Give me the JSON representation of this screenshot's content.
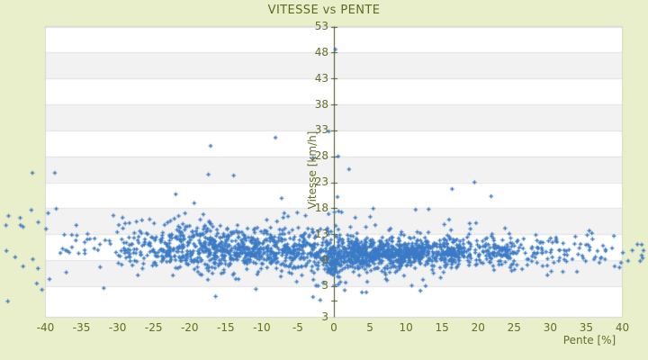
{
  "chart_data": {
    "type": "scatter",
    "title": "VITESSE vs PENTE",
    "xlabel": "Pente [%]",
    "ylabel": "Vitesse [km/h]",
    "x_ticks": [
      -40,
      -35,
      -30,
      -25,
      -20,
      -15,
      -10,
      -5,
      0,
      5,
      10,
      15,
      20,
      25,
      30,
      35,
      40
    ],
    "y_ticks": [
      53,
      48,
      43,
      38,
      33,
      28,
      23,
      18,
      13,
      8,
      3
    ],
    "y_axis_bottom_label": "3",
    "xlim": [
      -40,
      40
    ],
    "ylim": [
      -3,
      53
    ],
    "legend": "none",
    "grid": "horizontal-bands",
    "marker": "plus",
    "colors": {
      "background": "#e9eecb",
      "plot_background": "#ffffff",
      "band": "#f2f2f2",
      "gridline": "#e2e2e2",
      "plot_border": "#d6d6d6",
      "axis_line": "#46511b",
      "text": "#646f25",
      "title_text": "#5d6a1e",
      "marker": "#3c7bc6"
    },
    "scatter": {
      "seed": 42,
      "clusters": [
        {
          "n": 14,
          "x": [
            -45.5,
            -38.0
          ],
          "mean": 11.5,
          "sd": 5.0
        },
        {
          "n": 30,
          "x": [
            -38.0,
            -30.0
          ],
          "mean": 10.8,
          "sd": 2.8
        },
        {
          "n": 85,
          "x": [
            -30.0,
            -24.0
          ],
          "mean": 10.6,
          "sd": 2.4
        },
        {
          "n": 165,
          "x": [
            -24.0,
            -18.0
          ],
          "mean": 10.4,
          "sd": 2.2
        },
        {
          "n": 225,
          "x": [
            -18.0,
            -12.0
          ],
          "mean": 10.2,
          "sd": 2.0
        },
        {
          "n": 210,
          "x": [
            -12.0,
            -6.0
          ],
          "mean": 10.0,
          "sd": 1.9
        },
        {
          "n": 150,
          "x": [
            -6.0,
            -1.0
          ],
          "mean": 9.6,
          "sd": 2.0
        },
        {
          "n": 130,
          "x": [
            -1.0,
            1.0
          ],
          "mean": 8.6,
          "sd": 2.6
        },
        {
          "n": 270,
          "x": [
            1.0,
            6.0
          ],
          "mean": 9.2,
          "sd": 1.5
        },
        {
          "n": 300,
          "x": [
            6.0,
            12.0
          ],
          "mean": 9.3,
          "sd": 1.4
        },
        {
          "n": 210,
          "x": [
            12.0,
            18.0
          ],
          "mean": 9.5,
          "sd": 1.5
        },
        {
          "n": 130,
          "x": [
            18.0,
            25.0
          ],
          "mean": 9.6,
          "sd": 1.6
        },
        {
          "n": 65,
          "x": [
            25.0,
            32.0
          ],
          "mean": 9.8,
          "sd": 1.7
        },
        {
          "n": 32,
          "x": [
            32.0,
            38.0
          ],
          "mean": 9.9,
          "sd": 1.8
        },
        {
          "n": 16,
          "x": [
            38.0,
            44.5
          ],
          "mean": 9.8,
          "sd": 1.9
        },
        {
          "n": 70,
          "x": [
            -26.0,
            20.0
          ],
          "mean": 14.8,
          "sd": 2.3
        },
        {
          "n": 26,
          "x": [
            -20.0,
            15.0
          ],
          "mean": 4.6,
          "sd": 1.4
        }
      ],
      "outliers": [
        [
          0.2,
          48.6
        ],
        [
          -0.7,
          32.8
        ],
        [
          -8.1,
          31.6
        ],
        [
          -17.1,
          30.0
        ],
        [
          0.6,
          28.0
        ],
        [
          -2.9,
          27.7
        ],
        [
          2.1,
          25.5
        ],
        [
          -41.8,
          24.8
        ],
        [
          -38.7,
          24.8
        ],
        [
          -17.4,
          24.5
        ],
        [
          -13.9,
          24.3
        ],
        [
          -38.5,
          17.9
        ],
        [
          -43.1,
          14.4
        ],
        [
          -45.4,
          9.8
        ],
        [
          -43.1,
          6.8
        ],
        [
          -41.2,
          3.5
        ],
        [
          16.4,
          21.7
        ],
        [
          19.5,
          23.0
        ],
        [
          21.8,
          20.3
        ],
        [
          3.9,
          1.8
        ],
        [
          4.5,
          1.8
        ],
        [
          -2.9,
          0.9
        ],
        [
          -1.9,
          0.3
        ],
        [
          1.5,
          2.2
        ],
        [
          -16.4,
          1.0
        ],
        [
          -10.8,
          2.4
        ],
        [
          12.0,
          2.1
        ],
        [
          -31.9,
          2.6
        ]
      ]
    }
  }
}
